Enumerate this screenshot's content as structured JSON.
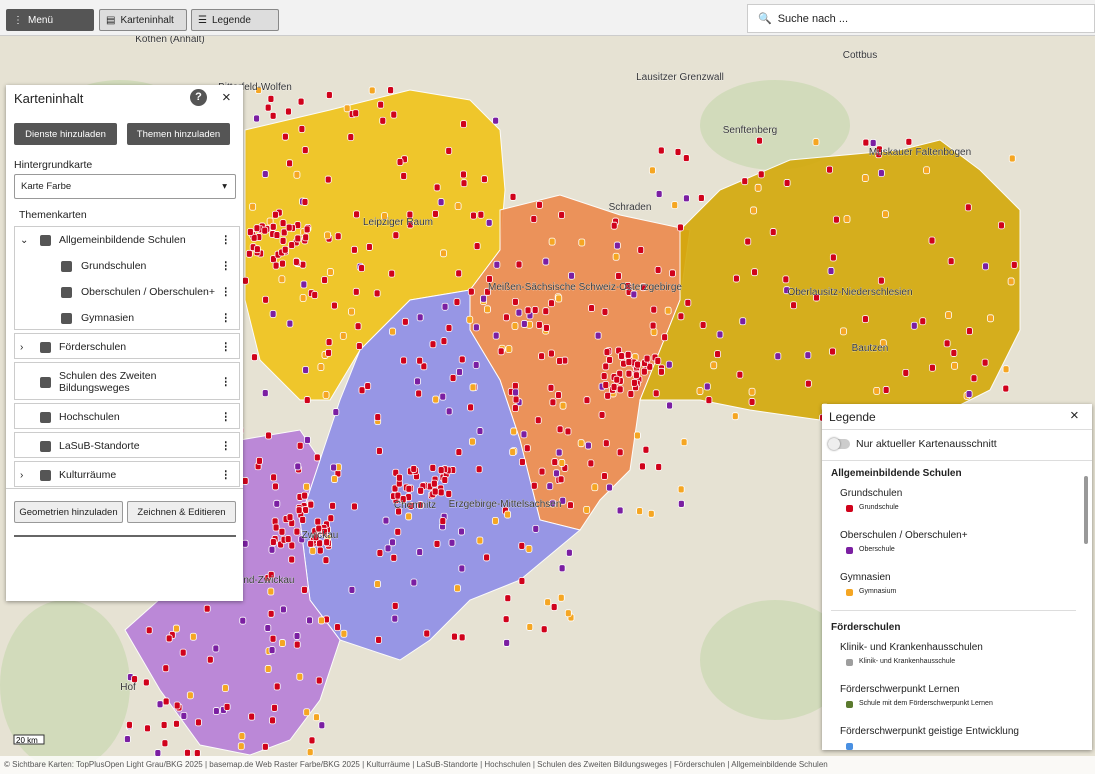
{
  "toolbar": {
    "menu": "Menü",
    "content": "Karteninhalt",
    "legend": "Legende",
    "search": "Suche nach ..."
  },
  "map": {
    "labels": [
      "Köthen (Anhalt)",
      "Bitterfeld-Wolfen",
      "Cottbus",
      "Senftenberg",
      "Lausitzer Grenzwall",
      "Muskauer Faltenbogen",
      "Schraden",
      "Leipziger Raum",
      "Meißen-Sächsische Schweiz-Osterzgebirge",
      "Oberlausitz-Niederschlesien",
      "Erzgebirge-Mittelsachsen",
      "Vogtland-Zwickau",
      "Chemnitz",
      "Zwickau",
      "Bautzen",
      "Hof"
    ],
    "scale": "20 km",
    "attribution": "© Sichtbare Karten: TopPlusOpen Light Grau/BKG 2025 | basemap.de Web Raster Farbe/BKG 2025 | Kulturräume | LaSuB-Standorte | Hochschulen | Schulen des Zweiten Bildungsweges | Förderschulen | Allgemeinbildende Schulen"
  },
  "panel": {
    "title": "Karteninhalt",
    "help": "?",
    "buttons": [
      "Dienste hinzuladen",
      "Themen hinzuladen"
    ],
    "background_label": "Hintergrundkarte",
    "background_value": "Karte Farbe",
    "themes_label": "Themenkarten",
    "layers": [
      {
        "label": "Allgemeinbildende Schulen",
        "children": [
          "Grundschulen",
          "Oberschulen / Oberschulen+",
          "Gymnasien"
        ]
      },
      {
        "label": "Förderschulen",
        "children": []
      },
      {
        "label": "Schulen des Zweiten Bildungsweges",
        "children": []
      },
      {
        "label": "Hochschulen",
        "children": []
      },
      {
        "label": "LaSuB-Standorte",
        "children": []
      },
      {
        "label": "Kulturräume",
        "children": []
      }
    ],
    "footer_buttons": [
      "Geometrien hinzuladen",
      "Zeichnen & Editieren"
    ]
  },
  "legend": {
    "title": "Legende",
    "toggle": "Nur aktueller Kartenausschnitt",
    "sections": [
      {
        "title": "Allgemeinbildende Schulen",
        "items": [
          {
            "name": "Grundschulen",
            "symbol": "Grundschule",
            "color": "#d0021b"
          },
          {
            "name": "Oberschulen / Oberschulen+",
            "symbol": "Oberschule",
            "color": "#7b1fa2"
          },
          {
            "name": "Gymnasien",
            "symbol": "Gymnasium",
            "color": "#f5a623"
          }
        ]
      },
      {
        "title": "Förderschulen",
        "items": [
          {
            "name": "Klinik- und Krankenhausschulen",
            "symbol": "Klinik- und Krankenhausschule",
            "color": "#9e9e9e"
          },
          {
            "name": "Förderschwerpunkt Lernen",
            "symbol": "Schule mit dem Förderschwerpunkt Lernen",
            "color": "#5b7a2e"
          },
          {
            "name": "Förderschwerpunkt geistige Entwicklung",
            "symbol": null,
            "color": "#4a90e2"
          }
        ]
      }
    ]
  }
}
